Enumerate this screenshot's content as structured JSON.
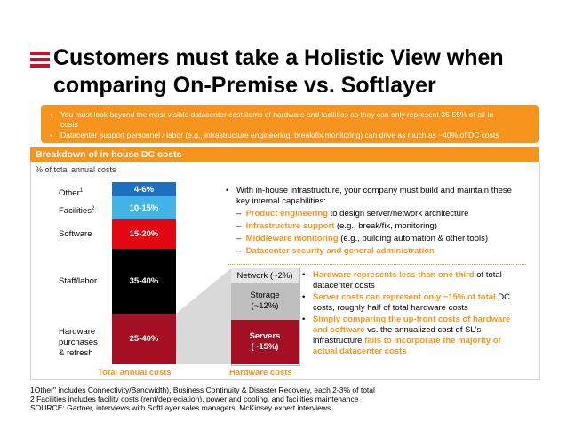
{
  "title": {
    "line1": "Customers must take a Holistic View when",
    "line2": "comparing On-Premise vs. Softlayer"
  },
  "callout": {
    "bullet1_line1": "You must look beyond the most visible datacenter cost items of hardware and facilities as they can only represent 35-55% of all-in",
    "bullet1_line2": "costs",
    "bullet2": "Datacenter support personnel / labor (e.g., infrastructure engineering, break/fix monitoring) can drive as much as ~40% of DC costs",
    "bullet_glyph": "•"
  },
  "breakdown": {
    "title": "Breakdown of in-house DC costs",
    "axis_label": "% of total annual costs",
    "categories": [
      {
        "name": "Other",
        "sup": "1",
        "value": "4-6%",
        "color": "#1f6fc1"
      },
      {
        "name": "Facilities",
        "sup": "2",
        "value": "10-15%",
        "color": "#41b6e6"
      },
      {
        "name": "Software",
        "sup": "",
        "value": "15-20%",
        "color": "#e30613"
      },
      {
        "name": "Staff/labor",
        "sup": "",
        "value": "35-40%",
        "color": "#000000"
      },
      {
        "name": "Hardware purchases & refresh",
        "sup": "",
        "value": "25-40%",
        "color": "#a50f24",
        "line1": "Hardware",
        "line2": "purchases",
        "line3": "& refresh"
      }
    ],
    "total_label": "Total annual costs",
    "hardware": {
      "label": "Hardware costs",
      "network": "Network (~2%)",
      "storage_line1": "Storage",
      "storage_line2": "(~12%)",
      "servers_line1": "Servers",
      "servers_line2": "(~15%)"
    }
  },
  "right_top": {
    "bullet": "•",
    "dash": "–",
    "intro_line1": "With in-house infrastructure, your company must build and maintain these",
    "intro_line2": "key internal capabilities:",
    "items": [
      {
        "highlight": "Product engineering",
        "rest": " to design server/network architecture"
      },
      {
        "highlight": "Infrastructure support",
        "rest": " (e.g., break/fix, monitoring)"
      },
      {
        "highlight": "Middleware monitoring",
        "rest": " (e.g., building automation & other tools)"
      },
      {
        "highlight": "Datacenter security and general administration",
        "rest": ""
      }
    ]
  },
  "right_bottom": {
    "b1_hl": "Hardware represents less than one third",
    "b1_rest": " of total",
    "b1_line2": "datacenter costs",
    "b2_hl": "Server costs can represent only ~15% of total",
    "b2_rest": " DC",
    "b2_line2": "costs, roughly half of total hardware costs",
    "b3_hl1": "Simply comparing the up-front costs of hardware",
    "b3_hl2": "and software",
    "b3_rest2": " vs. the annualized cost of SL's",
    "b3_l3a": "infrastructure ",
    "b3_l3b": "fails to incorporate the majority of",
    "b3_l4": "actual datacenter costs"
  },
  "notes": [
    "1Other\" includes Connectivity/Bandwidth), Business Continuity & Disaster Recovery, each 2-3% of total",
    "2 Facilities includes facility costs (rent/depreciation), power and cooling, and facilities maintenance",
    "SOURCE: Gartner, interviews with SoftLayer sales managers; McKinsey expert interviews"
  ]
}
